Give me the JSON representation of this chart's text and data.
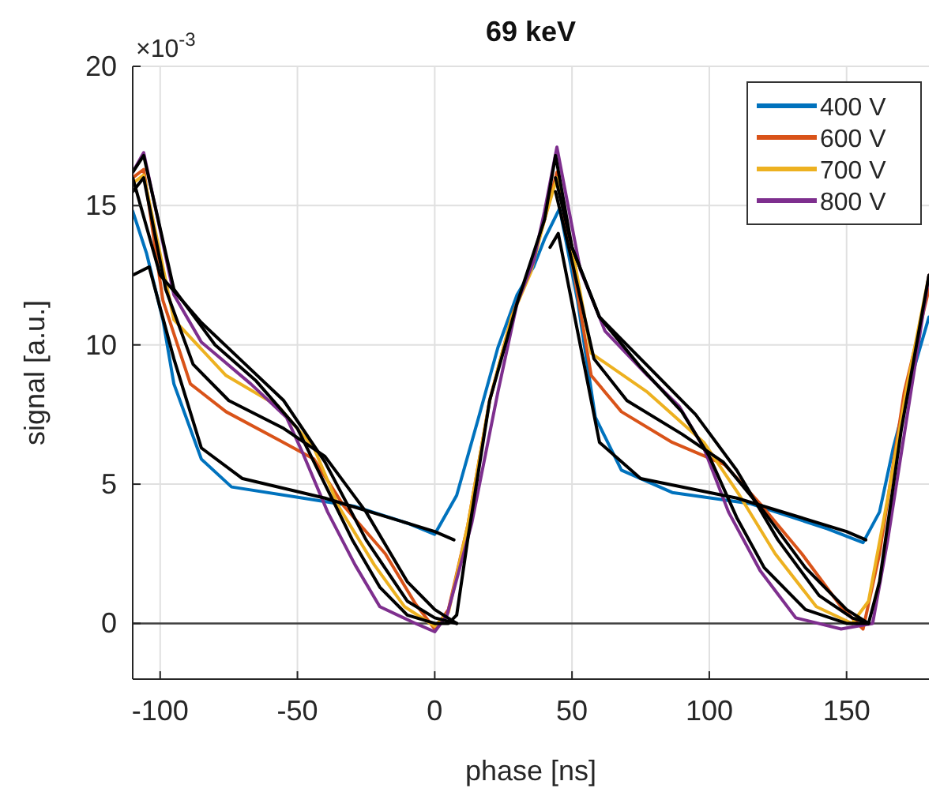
{
  "chart_data": {
    "type": "line",
    "title": "69 keV",
    "xlabel": "phase [ns]",
    "ylabel": "signal [a.u.]",
    "annotations": [
      "×10$^{-3}$"
    ],
    "xlim": [
      -110,
      180
    ],
    "ylim": [
      -2,
      20
    ],
    "xticks": [
      -100,
      -50,
      0,
      50,
      100,
      150
    ],
    "yticks": [
      0,
      5,
      10,
      15,
      20
    ],
    "grid": true,
    "legend": "top right",
    "marker": "none",
    "line_style": "solid",
    "ref_lines": [
      {
        "axis": "y",
        "value": 0,
        "color": "#404040"
      }
    ],
    "series": [
      {
        "name": "400 V",
        "color": "#0072bd",
        "x": [
          -110,
          -105,
          -99,
          -95,
          -85,
          -74,
          -48,
          -29,
          -10,
          0,
          8,
          16,
          23,
          30,
          36,
          40,
          45.5,
          52,
          58.5,
          68,
          86.5,
          115,
          143,
          156,
          162,
          167,
          175,
          180
        ],
        "values": [
          14.8,
          13.3,
          10.9,
          8.6,
          5.9,
          4.9,
          4.5,
          4.2,
          3.6,
          3.2,
          4.6,
          7.4,
          9.9,
          11.8,
          12.8,
          13.8,
          14.9,
          11.6,
          7.4,
          5.5,
          4.7,
          4.3,
          3.4,
          2.9,
          4.0,
          6.3,
          9.3,
          11.0
        ]
      },
      {
        "name": "600 V",
        "color": "#d95319",
        "x": [
          -110,
          -106,
          -99,
          -89,
          -76,
          -57,
          -44,
          -33,
          -18,
          -7,
          0,
          5,
          12,
          20,
          28,
          35,
          40,
          44.5,
          50,
          57,
          68,
          86.5,
          105.6,
          118.5,
          133.7,
          148,
          156,
          162,
          171,
          180
        ],
        "values": [
          16.0,
          16.3,
          11.6,
          8.6,
          7.6,
          6.6,
          5.9,
          4.2,
          2.5,
          0.7,
          -0.2,
          0.5,
          3.5,
          8.0,
          11.0,
          12.8,
          14.5,
          16.2,
          13.0,
          8.9,
          7.6,
          6.5,
          5.7,
          4.3,
          2.5,
          0.6,
          -0.2,
          2.5,
          8.3,
          12.0
        ]
      },
      {
        "name": "700 V",
        "color": "#edb120",
        "x": [
          -110,
          -106,
          -95,
          -76,
          -57,
          -44,
          -35,
          -22,
          -11,
          0,
          5,
          12,
          20,
          28,
          35,
          40,
          44.5,
          50,
          57,
          77.5,
          98,
          111,
          124,
          139,
          152,
          158,
          165,
          172,
          180
        ],
        "values": [
          15.8,
          16.1,
          10.9,
          8.9,
          7.8,
          6.3,
          4.2,
          2.1,
          0.6,
          -0.1,
          0.4,
          3.5,
          8.0,
          11.0,
          12.6,
          14.5,
          16.0,
          13.5,
          9.7,
          8.3,
          6.5,
          4.6,
          2.5,
          0.6,
          0,
          0.8,
          4.5,
          8.5,
          12.5
        ]
      },
      {
        "name": "800 V",
        "color": "#7e2f8e",
        "x": [
          -110,
          -106,
          -95,
          -85,
          -67,
          -54,
          -48,
          -39,
          -29,
          -20,
          -7,
          0,
          4.5,
          13.5,
          23,
          30,
          36,
          40,
          44.5,
          53,
          62,
          77.5,
          89,
          98,
          107,
          118.5,
          131.5,
          148,
          159.5,
          165,
          175,
          180
        ],
        "values": [
          16.2,
          16.9,
          11.8,
          10.1,
          8.6,
          7.4,
          6.1,
          4.0,
          2.1,
          0.6,
          0,
          -0.3,
          0.3,
          3.6,
          8.3,
          11.5,
          13.0,
          14.8,
          17.1,
          12.7,
          10.5,
          8.9,
          7.8,
          6.3,
          4.0,
          1.9,
          0.2,
          -0.2,
          0,
          3.0,
          9.3,
          12.5
        ]
      },
      {
        "color": "#000000",
        "x": [
          -110,
          -104,
          -95,
          -85,
          -70,
          -40,
          0,
          7,
          null,
          42,
          45,
          52,
          60,
          75,
          110,
          150,
          157
        ],
        "values": [
          12.5,
          12.8,
          9.5,
          6.3,
          5.2,
          4.5,
          3.3,
          3.0,
          null,
          13.5,
          14.0,
          10.5,
          6.5,
          5.2,
          4.5,
          3.3,
          3.0
        ]
      },
      {
        "color": "#000000",
        "x": [
          -110,
          -106,
          -98,
          -88,
          -75,
          -55,
          -40,
          -25,
          -10,
          0,
          8,
          null,
          44,
          50,
          58,
          70,
          90,
          105,
          120,
          135,
          150,
          158
        ],
        "values": [
          15.5,
          16.0,
          12.0,
          9.3,
          8.0,
          7.0,
          6.0,
          4.0,
          1.5,
          0.5,
          0,
          null,
          15.5,
          13,
          9.5,
          8.0,
          6.8,
          5.8,
          4.0,
          2.0,
          0.5,
          0
        ]
      },
      {
        "color": "#000000",
        "x": [
          -110,
          -100,
          -85,
          -70,
          -55,
          -40,
          -25,
          -10,
          0,
          8,
          null,
          44,
          50,
          60,
          75,
          95,
          110,
          125,
          140,
          152,
          158
        ],
        "values": [
          16,
          12.5,
          10.8,
          9.4,
          8.0,
          5.8,
          3.0,
          0.8,
          0.2,
          0,
          null,
          16,
          13.5,
          11,
          9.5,
          7.5,
          5.5,
          3.0,
          1.0,
          0.2,
          0
        ]
      },
      {
        "color": "#000000",
        "x": [
          -110,
          -106,
          -95,
          -80,
          -65,
          -50,
          -40,
          -30,
          -20,
          -10,
          0,
          5,
          8,
          12,
          20,
          30,
          40,
          44,
          50,
          60,
          75,
          90,
          100,
          110,
          120,
          135,
          150,
          158,
          162,
          170,
          180
        ],
        "values": [
          16.2,
          16.8,
          12,
          10,
          8.7,
          7,
          5,
          3,
          1.3,
          0.3,
          0,
          0,
          0.3,
          3,
          8,
          11.5,
          14.5,
          16.8,
          13.5,
          11,
          9.2,
          7.6,
          6,
          3.8,
          2,
          0.5,
          0,
          0,
          1.5,
          7,
          12.5
        ]
      }
    ]
  }
}
